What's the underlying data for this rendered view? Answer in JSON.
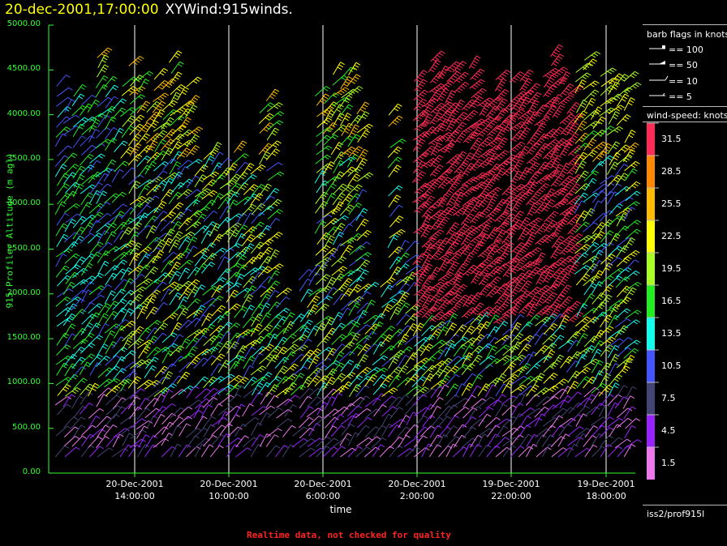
{
  "title": {
    "date": "20-dec-2001,17:00:00",
    "main": "XYWind:915winds."
  },
  "chart_data": {
    "type": "scatter",
    "ylabel": "915 Profiler Altitude (m agl)",
    "xlabel": "time",
    "ylim": [
      0,
      5000
    ],
    "yticks": [
      "0.00",
      "500.00",
      "1000.00",
      "1500.00",
      "2000.00",
      "2500.00",
      "3000.00",
      "3500.00",
      "4000.00",
      "4500.00",
      "5000.00"
    ],
    "xticks": [
      {
        "date": "20-Dec-2001",
        "time": "14:00:00"
      },
      {
        "date": "20-Dec-2001",
        "time": "10:00:00"
      },
      {
        "date": "20-Dec-2001",
        "time": "6:00:00"
      },
      {
        "date": "20-Dec-2001",
        "time": "2:00:00"
      },
      {
        "date": "19-Dec-2001",
        "time": "22:00:00"
      },
      {
        "date": "19-Dec-2001",
        "time": "18:00:00"
      }
    ],
    "x_direction": "time decreasing to the right",
    "grid": "vertical lines at major ticks"
  },
  "legend": {
    "barb_title": "barb flags in knots",
    "barbs": [
      "== 100",
      "== 50",
      "== 10",
      "== 5"
    ],
    "speed_title": "wind-speed: knots",
    "levels": [
      {
        "label": "31.5",
        "color": "#ff2a55"
      },
      {
        "label": "28.5",
        "color": "#ff8800"
      },
      {
        "label": "25.5",
        "color": "#ffbb00"
      },
      {
        "label": "22.5",
        "color": "#ffff00"
      },
      {
        "label": "19.5",
        "color": "#aaff22"
      },
      {
        "label": "16.5",
        "color": "#22ee22"
      },
      {
        "label": "13.5",
        "color": "#11ffee"
      },
      {
        "label": "10.5",
        "color": "#4455ff"
      },
      {
        "label": "7.5",
        "color": "#444477"
      },
      {
        "label": "4.5",
        "color": "#9922ff"
      },
      {
        "label": "1.5",
        "color": "#ee77ee"
      }
    ],
    "source": "iss2/prof915l"
  },
  "footer": "Realtime data, not checked for quality",
  "colors": {
    "axis": "#33ff33",
    "grid": "#ffffff",
    "background": "#000000"
  }
}
